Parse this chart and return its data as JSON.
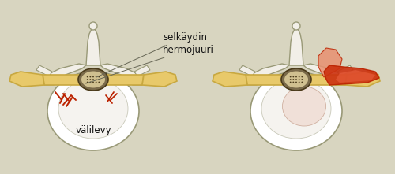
{
  "bg_color": "#d8d5c0",
  "bone_white": "#f2efe8",
  "bone_outline": "#999977",
  "disc_yellow": "#e8c96a",
  "disc_outline": "#c8a840",
  "canal_dark": "#7a6a4a",
  "canal_mid": "#b8a878",
  "canal_light": "#d0c090",
  "red_dark": "#bb2200",
  "red_mid": "#cc3311",
  "red_light": "#ee6644",
  "red_pale": "#e89070",
  "label_selkaydin": "selkäydin",
  "label_hermojuuri": "hermojuuri",
  "label_valilevy": "välilevy",
  "font_size": 8.5,
  "fig_width": 5.0,
  "fig_height": 2.21
}
